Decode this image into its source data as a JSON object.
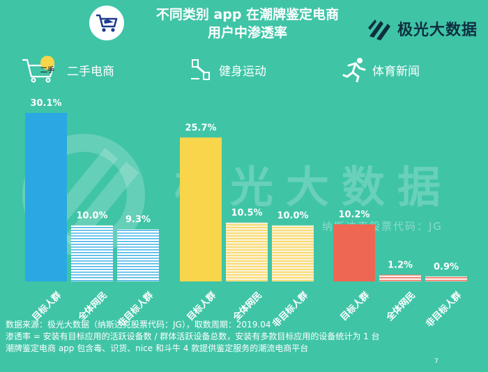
{
  "header": {
    "title_line1": "不同类别 app 在潮牌鉴定电商",
    "title_line2": "用户中渗透率",
    "logo_text": "极光大数据"
  },
  "categories": [
    {
      "icon": "shopping-cart-icon",
      "badge": "二手",
      "label": "二手电商"
    },
    {
      "icon": "dumbbell-icon",
      "label": "健身运动"
    },
    {
      "icon": "runner-icon",
      "label": "体育新闻"
    }
  ],
  "watermark": {
    "text": "极光大数据",
    "sub": "纳斯达克股票代码：JG"
  },
  "colors": {
    "background": "#3fc4a6",
    "group1": "#2aa8e4",
    "group2": "#f8d54a",
    "group3": "#ee6752"
  },
  "chart_data": {
    "type": "bar",
    "groups": [
      {
        "name": "二手电商",
        "categories": [
          "目标人群",
          "全体网民",
          "非目标人群"
        ],
        "values": [
          30.1,
          10.0,
          9.3
        ],
        "labels": [
          "30.1%",
          "10.0%",
          "9.3%"
        ],
        "color": "#2aa8e4",
        "light_color": "#e6f4fb"
      },
      {
        "name": "健身运动",
        "categories": [
          "目标人群",
          "全体网民",
          "非目标人群"
        ],
        "values": [
          25.7,
          10.5,
          10.0
        ],
        "labels": [
          "25.7%",
          "10.5%",
          "10.0%"
        ],
        "color": "#f8d54a",
        "light_color": "#fbf1d6"
      },
      {
        "name": "体育新闻",
        "categories": [
          "目标人群",
          "全体网民",
          "非目标人群"
        ],
        "values": [
          10.2,
          1.2,
          0.9
        ],
        "labels": [
          "10.2%",
          "1.2%",
          "0.9%"
        ],
        "color": "#ee6752",
        "light_color": "#f9dfd9"
      }
    ],
    "ylim": [
      0,
      30.1
    ],
    "unit": "%"
  },
  "footer": {
    "line1": "数据来源：极光大数据（纳斯达克股票代码：JG），取数周期：2019.04",
    "line2": "渗透率 = 安装有目标应用的活跃设备数 / 群体活跃设备总数，安装有多款目标应用的设备统计为 1 台",
    "line3": "潮牌鉴定电商 app 包含毒、识货、nice 和斗牛 4 款提供鉴定服务的潮流电商平台",
    "page": "7"
  }
}
